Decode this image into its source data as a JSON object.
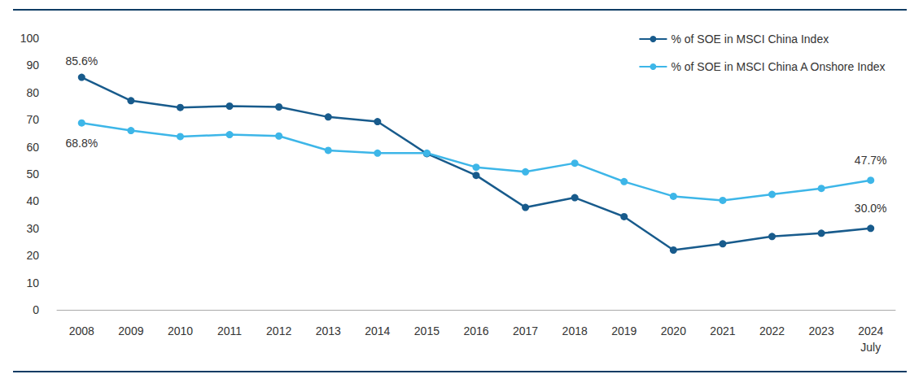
{
  "chart_data": {
    "type": "line",
    "categories": [
      "2008",
      "2009",
      "2010",
      "2011",
      "2012",
      "2013",
      "2014",
      "2015",
      "2016",
      "2017",
      "2018",
      "2019",
      "2020",
      "2021",
      "2022",
      "2023",
      "2024\nJuly"
    ],
    "series": [
      {
        "name": "% of SOE in MSCI China Index",
        "color": "#185b8c",
        "marker": "circle",
        "values": [
          85.6,
          77,
          74.5,
          75,
          74.7,
          71,
          69.3,
          57.5,
          49.5,
          37.7,
          41.3,
          34.3,
          22,
          24.3,
          27,
          28.2,
          30.0
        ]
      },
      {
        "name": "% of SOE in MSCI China A Onshore Index",
        "color": "#3db6e8",
        "marker": "circle",
        "values": [
          68.8,
          66,
          63.8,
          64.5,
          64,
          58.7,
          57.7,
          57.7,
          52.5,
          50.8,
          54,
          47.2,
          41.8,
          40.3,
          42.5,
          44.7,
          47.7
        ]
      }
    ],
    "ylim": [
      0,
      100
    ],
    "yticks": [
      0,
      10,
      20,
      30,
      40,
      50,
      60,
      70,
      80,
      90,
      100
    ],
    "grid": false,
    "legend": "upper right",
    "annotations": [
      {
        "text": "85.6%",
        "series": "% of SOE in MSCI China Index",
        "category": "2008"
      },
      {
        "text": "68.8%",
        "series": "% of SOE in MSCI China A Onshore Index",
        "category": "2008"
      },
      {
        "text": "47.7%",
        "series": "% of SOE in MSCI China A Onshore Index",
        "category": "2024\nJuly"
      },
      {
        "text": "30.0%",
        "series": "% of SOE in MSCI China Index",
        "category": "2024\nJuly"
      }
    ]
  }
}
